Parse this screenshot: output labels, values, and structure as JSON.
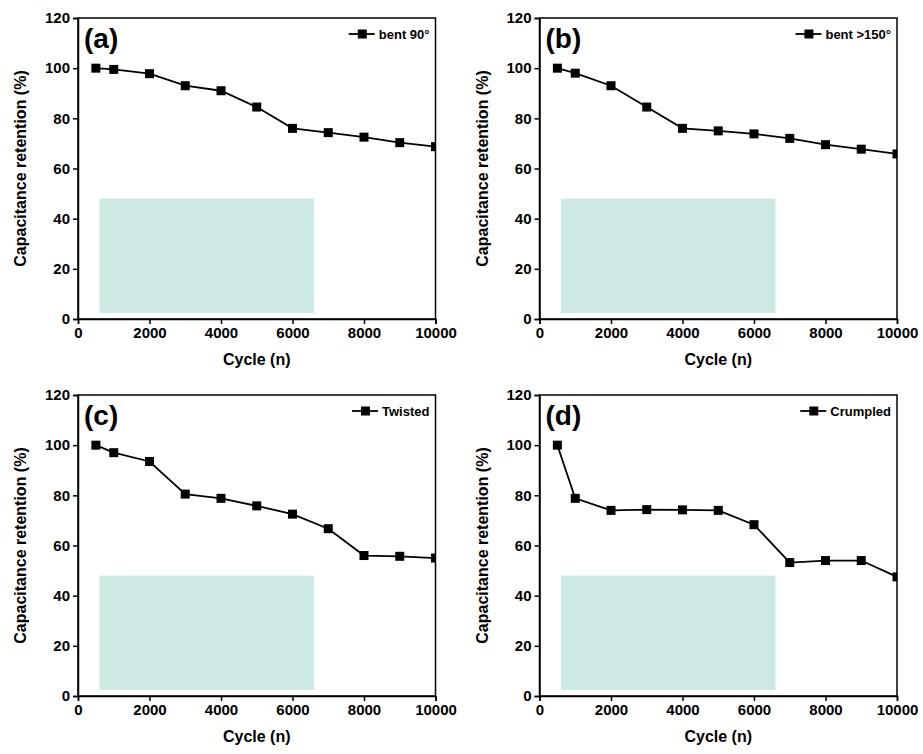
{
  "chart_data": [
    {
      "type": "line",
      "title": "(a)",
      "x_label": "Cycle (n)",
      "y_label": "Capacitance retention (%)",
      "x": [
        500,
        1000,
        2000,
        3000,
        4000,
        5000,
        6000,
        7000,
        8000,
        9000,
        10000
      ],
      "series": [
        {
          "name": "bent 90°",
          "color": "#000000",
          "marker": "square",
          "line_style": "solid",
          "values": [
            100,
            99.5,
            97.8,
            93,
            91,
            84.5,
            76,
            74.3,
            72.5,
            70.3,
            68.7
          ]
        }
      ],
      "xlim": [
        0,
        10000
      ],
      "ylim": [
        0,
        120
      ],
      "xticks": [
        0,
        2000,
        4000,
        6000,
        8000,
        10000
      ],
      "yticks": [
        0,
        20,
        40,
        60,
        80,
        100,
        120
      ],
      "legend": "upper right"
    },
    {
      "type": "line",
      "title": "(b)",
      "x_label": "Cycle (n)",
      "y_label": "Capacitance retention (%)",
      "x": [
        500,
        1000,
        2000,
        3000,
        4000,
        5000,
        6000,
        7000,
        8000,
        9000,
        10000
      ],
      "series": [
        {
          "name": "bent >150°",
          "color": "#000000",
          "marker": "square",
          "line_style": "solid",
          "values": [
            100,
            98,
            93,
            84.5,
            76,
            75,
            73.8,
            72,
            69.5,
            67.7,
            65.8
          ]
        }
      ],
      "xlim": [
        0,
        10000
      ],
      "ylim": [
        0,
        120
      ],
      "xticks": [
        0,
        2000,
        4000,
        6000,
        8000,
        10000
      ],
      "yticks": [
        0,
        20,
        40,
        60,
        80,
        100,
        120
      ],
      "legend": "upper right"
    },
    {
      "type": "line",
      "title": "(c)",
      "x_label": "Cycle (n)",
      "y_label": "Capacitance retention (%)",
      "x": [
        500,
        1000,
        2000,
        3000,
        4000,
        5000,
        6000,
        7000,
        8000,
        9000,
        10000
      ],
      "series": [
        {
          "name": "Twisted",
          "color": "#000000",
          "marker": "square",
          "line_style": "solid",
          "values": [
            100,
            97,
            93.5,
            80.5,
            78.8,
            75.8,
            72.5,
            66.7,
            56,
            55.7,
            55
          ]
        }
      ],
      "xlim": [
        0,
        10000
      ],
      "ylim": [
        0,
        120
      ],
      "xticks": [
        0,
        2000,
        4000,
        6000,
        8000,
        10000
      ],
      "yticks": [
        0,
        20,
        40,
        60,
        80,
        100,
        120
      ],
      "legend": "upper right"
    },
    {
      "type": "line",
      "title": "(d)",
      "x_label": "Cycle (n)",
      "y_label": "Capacitance retention (%)",
      "x": [
        500,
        1000,
        2000,
        3000,
        4000,
        5000,
        6000,
        7000,
        8000,
        9000,
        10000
      ],
      "series": [
        {
          "name": "Crumpled",
          "color": "#000000",
          "marker": "square",
          "line_style": "solid",
          "values": [
            100,
            78.8,
            74,
            74.3,
            74.2,
            74,
            68.3,
            53.2,
            54,
            54,
            47.5
          ]
        }
      ],
      "xlim": [
        0,
        10000
      ],
      "ylim": [
        0,
        120
      ],
      "xticks": [
        0,
        2000,
        4000,
        6000,
        8000,
        10000
      ],
      "yticks": [
        0,
        20,
        40,
        60,
        80,
        100,
        120
      ],
      "legend": "upper right"
    }
  ]
}
